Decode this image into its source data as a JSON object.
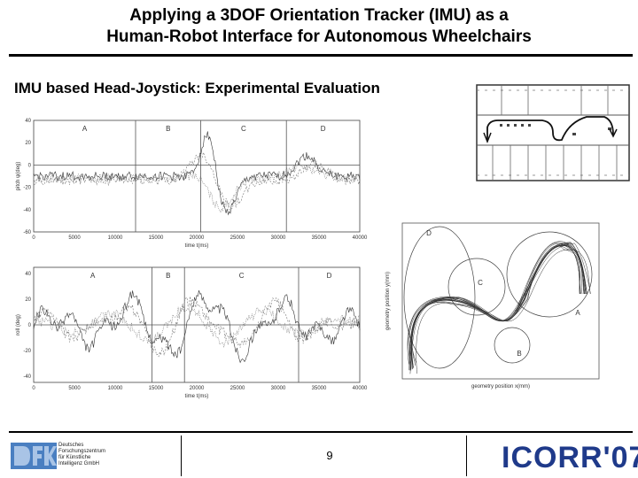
{
  "title_line1": "Applying a 3DOF Orientation Tracker (IMU) as a",
  "title_line2": "Human-Robot Interface for Autonomous Wheelchairs",
  "subtitle": "IMU based Head-Joystick: Experimental Evaluation",
  "slide_number": "9",
  "footer": {
    "dfki_lines": [
      "Deutsches",
      "Forschungszentrum",
      "für Künstliche",
      "Intelligenz GmbH"
    ],
    "conference_logo": "ICORR'07"
  },
  "chart_data": [
    {
      "type": "line",
      "ylabel": "pitch ψ(deg)",
      "xlabel": "time t(ms)",
      "xlim": [
        0,
        40000
      ],
      "ylim": [
        -60,
        40
      ],
      "x_ticks": [
        "0",
        "5000",
        "10000",
        "15000",
        "20000",
        "25000",
        "30000",
        "35000",
        "40000"
      ],
      "y_ticks": [
        "40",
        "20",
        "0",
        "-20",
        "-40",
        "-60"
      ],
      "segments": [
        "A",
        "B",
        "C",
        "D"
      ],
      "boundaries": [
        12500,
        20500,
        31000
      ]
    },
    {
      "type": "line",
      "ylabel": "roll (deg)",
      "xlabel": "time t(ms)",
      "xlim": [
        0,
        40000
      ],
      "ylim": [
        -45,
        45
      ],
      "x_ticks": [
        "0",
        "5000",
        "10000",
        "15000",
        "20000",
        "25000",
        "30000",
        "35000",
        "40000"
      ],
      "y_ticks": [
        "40",
        "20",
        "0",
        "-20",
        "-40"
      ],
      "segments": [
        "A",
        "B",
        "C",
        "D"
      ],
      "boundaries": [
        14500,
        18500,
        32500
      ]
    },
    {
      "type": "line",
      "ylabel": "geometry position y(mm)",
      "xlabel": "geometry position x(mm)",
      "segments": [
        "D",
        "C",
        "A",
        "B"
      ]
    }
  ]
}
